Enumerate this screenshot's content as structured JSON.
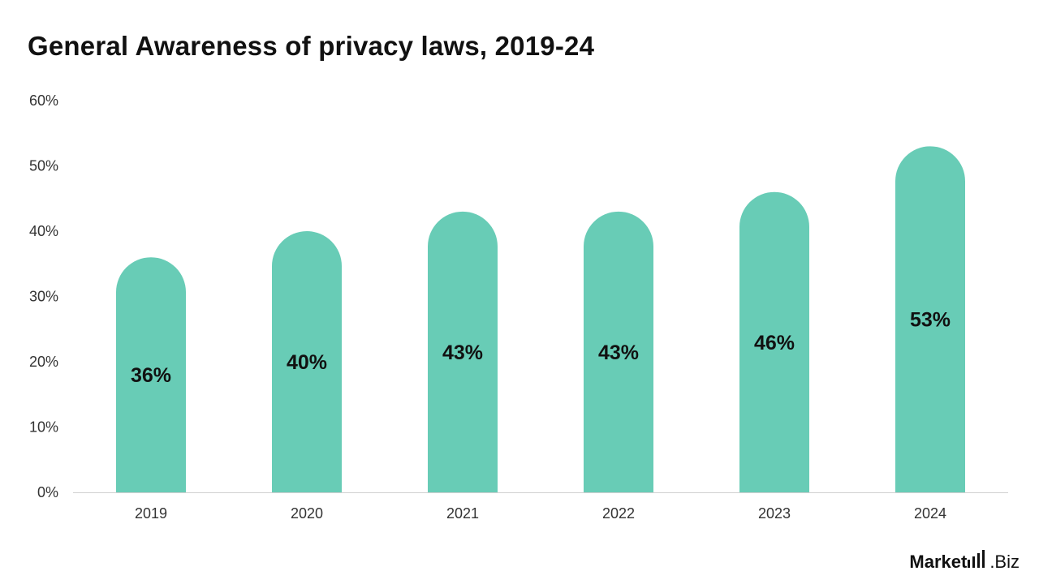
{
  "chart_data": {
    "type": "bar",
    "title": "General Awareness of privacy laws, 2019-24",
    "xlabel": "",
    "ylabel": "",
    "categories": [
      "2019",
      "2020",
      "2021",
      "2022",
      "2023",
      "2024"
    ],
    "values": [
      36,
      40,
      43,
      43,
      46,
      53
    ],
    "value_labels": [
      "36%",
      "40%",
      "43%",
      "43%",
      "46%",
      "53%"
    ],
    "ylim": [
      0,
      60
    ],
    "yticks": [
      0,
      10,
      20,
      30,
      40,
      50,
      60
    ],
    "ytick_labels": [
      "0%",
      "10%",
      "20%",
      "30%",
      "40%",
      "50%",
      "60%"
    ],
    "grid": false,
    "legend": "none",
    "bar_color": "#68ccb6",
    "bar_style": "rounded-top"
  },
  "brand": {
    "text_bold": "Market",
    "text_rest": ".Biz",
    "icon": "bar-chart-icon"
  }
}
